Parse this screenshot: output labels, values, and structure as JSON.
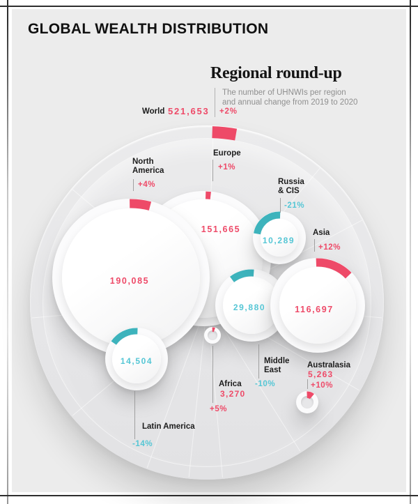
{
  "title": "GLOBAL WEALTH DISTRIBUTION",
  "roundup": {
    "heading": "Regional round-up",
    "subtitle_line1": "The number of UHNWIs per region",
    "subtitle_line2": "and annual change from 2019 to 2020"
  },
  "world": {
    "label": "World",
    "value": "521,653",
    "change": "+2%"
  },
  "chart_data": {
    "type": "bubble",
    "title": "Regional round-up",
    "subtitle": "The number of UHNWIs per region and annual change from 2019 to 2020",
    "world": {
      "label": "World",
      "uhnwis": 521653,
      "change_pct": 2
    },
    "colors": {
      "positive": "#ee4a68",
      "negative_arc": "#3db3bc",
      "negative_text": "#55c6d5",
      "dark_text": "#1c1c1c"
    },
    "regions": [
      {
        "id": "north-america",
        "label": "North America",
        "name_lines": [
          "North",
          "America"
        ],
        "value": "190,085",
        "uhnwis": 190085,
        "change": "+4%",
        "change_pct": 4
      },
      {
        "id": "europe",
        "label": "Europe",
        "name_lines": [
          "Europe"
        ],
        "value": "151,665",
        "uhnwis": 151665,
        "change": "+1%",
        "change_pct": 1
      },
      {
        "id": "russia-cis",
        "label": "Russia & CIS",
        "name_lines": [
          "Russia",
          "& CIS"
        ],
        "value": "10,289",
        "uhnwis": 10289,
        "change": "-21%",
        "change_pct": -21
      },
      {
        "id": "asia",
        "label": "Asia",
        "name_lines": [
          "Asia"
        ],
        "value": "116,697",
        "uhnwis": 116697,
        "change": "+12%",
        "change_pct": 12
      },
      {
        "id": "middle-east",
        "label": "Middle East",
        "name_lines": [
          "Middle",
          "East"
        ],
        "value": "29,880",
        "uhnwis": 29880,
        "change": "-10%",
        "change_pct": -10
      },
      {
        "id": "latin-america",
        "label": "Latin America",
        "name_lines": [
          "Latin America"
        ],
        "value": "14,504",
        "uhnwis": 14504,
        "change": "-14%",
        "change_pct": -14
      },
      {
        "id": "africa",
        "label": "Africa",
        "name_lines": [
          "Africa"
        ],
        "value": "3,270",
        "uhnwis": 3270,
        "change": "+5%",
        "change_pct": 5
      },
      {
        "id": "australasia",
        "label": "Australasia",
        "name_lines": [
          "Australasia"
        ],
        "value": "5,263",
        "uhnwis": 5263,
        "change": "+10%",
        "change_pct": 10
      }
    ]
  }
}
